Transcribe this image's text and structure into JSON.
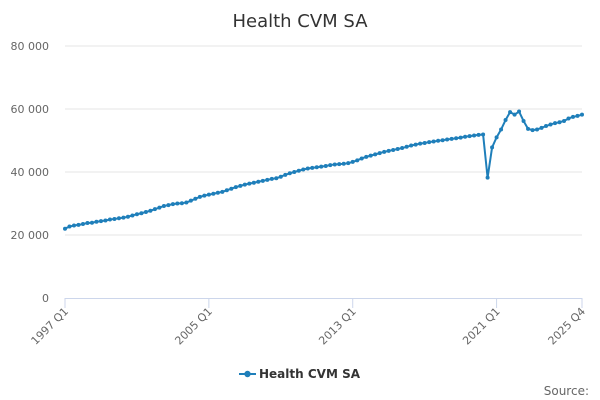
{
  "chart_data": {
    "type": "line",
    "title": "Health CVM SA",
    "source_label": "Source:",
    "xlabel": "",
    "ylabel": "",
    "ylim": [
      0,
      80000
    ],
    "y_ticks": [
      0,
      20000,
      40000,
      60000,
      80000
    ],
    "y_tick_labels": [
      "0",
      "20 000",
      "40 000",
      "60 000",
      "80 000"
    ],
    "x_tick_labels": [
      "1997 Q1",
      "2005 Q1",
      "2013 Q1",
      "2021 Q1",
      "2025 Q4"
    ],
    "grid": true,
    "legend_position": "bottom-center",
    "colors": {
      "series": "#1f7fba",
      "grid": "#e6e6e6",
      "axis": "#ccd6eb"
    },
    "series": [
      {
        "name": "Health CVM SA",
        "x": [
          "1997 Q1",
          "1997 Q2",
          "1997 Q3",
          "1997 Q4",
          "1998 Q1",
          "1998 Q2",
          "1998 Q3",
          "1998 Q4",
          "1999 Q1",
          "1999 Q2",
          "1999 Q3",
          "1999 Q4",
          "2000 Q1",
          "2000 Q2",
          "2000 Q3",
          "2000 Q4",
          "2001 Q1",
          "2001 Q2",
          "2001 Q3",
          "2001 Q4",
          "2002 Q1",
          "2002 Q2",
          "2002 Q3",
          "2002 Q4",
          "2003 Q1",
          "2003 Q2",
          "2003 Q3",
          "2003 Q4",
          "2004 Q1",
          "2004 Q2",
          "2004 Q3",
          "2004 Q4",
          "2005 Q1",
          "2005 Q2",
          "2005 Q3",
          "2005 Q4",
          "2006 Q1",
          "2006 Q2",
          "2006 Q3",
          "2006 Q4",
          "2007 Q1",
          "2007 Q2",
          "2007 Q3",
          "2007 Q4",
          "2008 Q1",
          "2008 Q2",
          "2008 Q3",
          "2008 Q4",
          "2009 Q1",
          "2009 Q2",
          "2009 Q3",
          "2009 Q4",
          "2010 Q1",
          "2010 Q2",
          "2010 Q3",
          "2010 Q4",
          "2011 Q1",
          "2011 Q2",
          "2011 Q3",
          "2011 Q4",
          "2012 Q1",
          "2012 Q2",
          "2012 Q3",
          "2012 Q4",
          "2013 Q1",
          "2013 Q2",
          "2013 Q3",
          "2013 Q4",
          "2014 Q1",
          "2014 Q2",
          "2014 Q3",
          "2014 Q4",
          "2015 Q1",
          "2015 Q2",
          "2015 Q3",
          "2015 Q4",
          "2016 Q1",
          "2016 Q2",
          "2016 Q3",
          "2016 Q4",
          "2017 Q1",
          "2017 Q2",
          "2017 Q3",
          "2017 Q4",
          "2018 Q1",
          "2018 Q2",
          "2018 Q3",
          "2018 Q4",
          "2019 Q1",
          "2019 Q2",
          "2019 Q3",
          "2019 Q4",
          "2020 Q1",
          "2020 Q2",
          "2020 Q3",
          "2020 Q4",
          "2021 Q1",
          "2021 Q2",
          "2021 Q3",
          "2021 Q4",
          "2022 Q1",
          "2022 Q2",
          "2022 Q3",
          "2022 Q4",
          "2023 Q1",
          "2023 Q2",
          "2023 Q3",
          "2023 Q4",
          "2024 Q1",
          "2024 Q2",
          "2024 Q3",
          "2024 Q4",
          "2025 Q1",
          "2025 Q2",
          "2025 Q3",
          "2025 Q4"
        ],
        "values": [
          22000,
          22700,
          23000,
          23200,
          23500,
          23800,
          23900,
          24200,
          24400,
          24600,
          24900,
          25100,
          25300,
          25500,
          25800,
          26200,
          26600,
          26900,
          27300,
          27700,
          28200,
          28700,
          29200,
          29500,
          29800,
          30000,
          30100,
          30300,
          30900,
          31500,
          32100,
          32500,
          32800,
          33100,
          33400,
          33700,
          34200,
          34700,
          35200,
          35600,
          36000,
          36300,
          36600,
          36900,
          37200,
          37500,
          37800,
          38000,
          38500,
          39100,
          39600,
          40000,
          40400,
          40800,
          41100,
          41300,
          41500,
          41700,
          41900,
          42200,
          42400,
          42500,
          42600,
          42800,
          43200,
          43700,
          44300,
          44800,
          45200,
          45600,
          46000,
          46400,
          46700,
          47000,
          47300,
          47600,
          48000,
          48400,
          48700,
          49000,
          49200,
          49500,
          49700,
          49900,
          50100,
          50300,
          50500,
          50700,
          50900,
          51200,
          51400,
          51600,
          51800,
          51900,
          38200,
          47800,
          51000,
          53500,
          56500,
          59000,
          58200,
          59200,
          56200,
          53700,
          53300,
          53500,
          54000,
          54600,
          55100,
          55500,
          55800,
          56200,
          57000,
          57500,
          57800,
          58200
        ]
      }
    ]
  }
}
